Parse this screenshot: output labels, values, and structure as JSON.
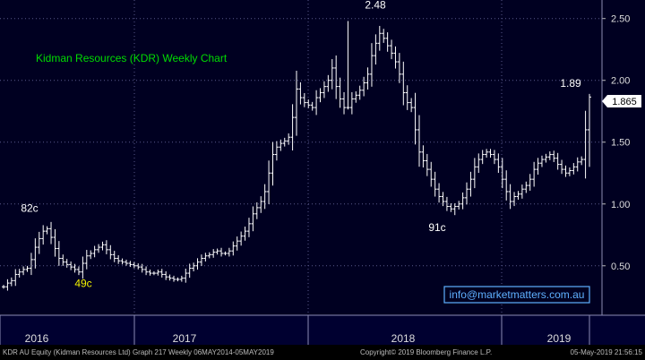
{
  "chart_data": {
    "type": "bar",
    "subtype": "ohlc-weekly",
    "title": "Kidman Resources (KDR) Weekly Chart",
    "watermark": "info@marketmatters.com.au",
    "y_axis": {
      "side": "right",
      "ylim": [
        0.1,
        2.65
      ],
      "ticks": [
        "2.50",
        "2.00",
        "1.50",
        "1.00",
        "0.50"
      ],
      "grid": true
    },
    "x_axis": {
      "labels": [
        "2016",
        "2017",
        "2018",
        "2019"
      ]
    },
    "last_price": "1.865",
    "annotations": [
      {
        "text": "82c",
        "x": 33,
        "y": 0.82,
        "color": "#ffffff"
      },
      {
        "text": "49c",
        "x": 93,
        "y": 0.43,
        "color": "#f2f200"
      },
      {
        "text": "2.48",
        "x": 419,
        "y": 2.48,
        "color": "#ffffff"
      },
      {
        "text": "91c",
        "x": 488,
        "y": 0.91,
        "color": "#ffffff"
      },
      {
        "text": "1.89",
        "x": 637,
        "y": 1.89,
        "color": "#ffffff"
      }
    ],
    "colors": {
      "background": "#000021",
      "bars": "#ffffff",
      "title": "#00dd00",
      "grid": "#5a5a8c",
      "price_box": "#ffffff"
    },
    "series": [
      {
        "values": [
          0.33,
          0.36,
          0.38,
          0.43,
          0.45,
          0.47,
          0.48,
          0.55,
          0.65,
          0.72,
          0.78,
          0.8,
          0.73,
          0.64,
          0.56,
          0.53,
          0.51,
          0.49,
          0.47,
          0.45,
          0.52,
          0.58,
          0.6,
          0.63,
          0.65,
          0.67,
          0.63,
          0.59,
          0.56,
          0.54,
          0.53,
          0.52,
          0.51,
          0.5,
          0.49,
          0.47,
          0.45,
          0.44,
          0.44,
          0.45,
          0.43,
          0.41,
          0.4,
          0.39,
          0.39,
          0.4,
          0.44,
          0.48,
          0.5,
          0.53,
          0.56,
          0.58,
          0.59,
          0.61,
          0.62,
          0.6,
          0.6,
          0.62,
          0.66,
          0.7,
          0.74,
          0.78,
          0.84,
          0.92,
          0.97,
          1.02,
          1.1,
          1.25,
          1.4,
          1.46,
          1.49,
          1.51,
          1.54,
          1.7,
          1.93,
          1.86,
          1.82,
          1.8,
          1.78,
          1.86,
          1.9,
          1.95,
          2.0,
          2.1,
          1.95,
          1.85,
          1.78,
          1.78,
          1.85,
          1.88,
          1.92,
          1.98,
          2.05,
          2.2,
          2.3,
          2.38,
          2.34,
          2.28,
          2.22,
          2.15,
          2.05,
          1.9,
          1.82,
          1.78,
          1.6,
          1.42,
          1.35,
          1.28,
          1.2,
          1.12,
          1.06,
          1.02,
          0.98,
          0.96,
          0.98,
          1.0,
          1.05,
          1.12,
          1.2,
          1.3,
          1.36,
          1.4,
          1.42,
          1.4,
          1.36,
          1.3,
          1.2,
          1.1,
          1.02,
          1.06,
          1.08,
          1.12,
          1.15,
          1.2,
          1.28,
          1.33,
          1.36,
          1.38,
          1.4,
          1.37,
          1.32,
          1.28,
          1.25,
          1.27,
          1.3,
          1.34,
          1.36,
          1.6,
          1.865
        ]
      }
    ]
  },
  "footer": {
    "left": "KDR AU Equity (Kidman Resources Ltd) Graph 217  Weekly 06MAY2014-05MAY2019",
    "center": "Copyright© 2019 Bloomberg Finance L.P.",
    "right": "05-May-2019 21:56:15"
  }
}
